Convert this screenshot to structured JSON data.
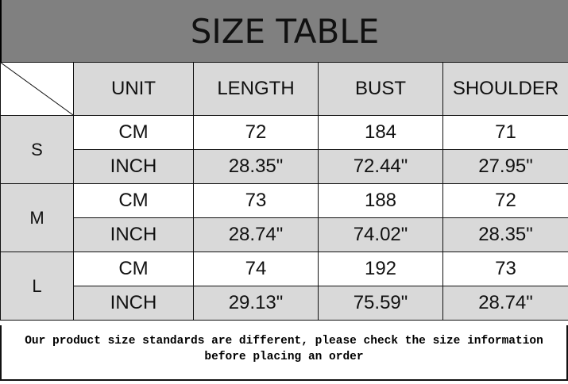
{
  "title": "SIZE TABLE",
  "headers": [
    "UNIT",
    "LENGTH",
    "BUST",
    "SHOULDER"
  ],
  "sizes": [
    {
      "size": "S",
      "rows": [
        {
          "unit": "CM",
          "values": [
            "72",
            "184",
            "71"
          ]
        },
        {
          "unit": "INCH",
          "values": [
            "28.35\"",
            "72.44\"",
            "27.95\""
          ]
        }
      ]
    },
    {
      "size": "M",
      "rows": [
        {
          "unit": "CM",
          "values": [
            "73",
            "188",
            "72"
          ]
        },
        {
          "unit": "INCH",
          "values": [
            "28.74\"",
            "74.02\"",
            "28.35\""
          ]
        }
      ]
    },
    {
      "size": "L",
      "rows": [
        {
          "unit": "CM",
          "values": [
            "74",
            "192",
            "73"
          ]
        },
        {
          "unit": "INCH",
          "values": [
            "29.13\"",
            "75.59\"",
            "28.74\""
          ]
        }
      ]
    }
  ],
  "note": "Our product size standards are different, please check the size information before placing an order",
  "colors": {
    "title_bg": "#808080",
    "cell_gray": "#d9d9d9"
  }
}
